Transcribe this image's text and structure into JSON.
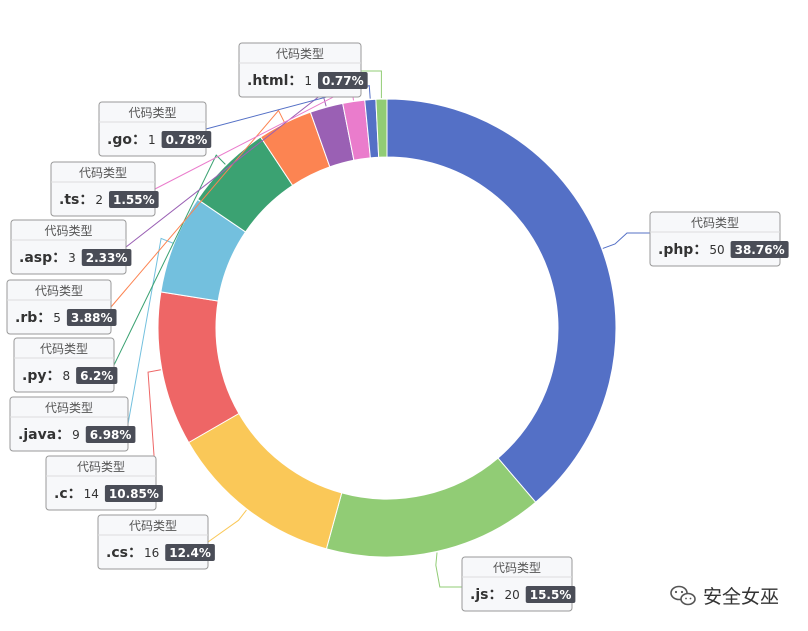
{
  "chart_data": {
    "type": "pie",
    "categories": [
      ".php",
      ".js",
      ".cs",
      ".c",
      ".java",
      ".py",
      ".rb",
      ".asp",
      ".ts",
      ".go",
      ".html"
    ],
    "values": [
      50,
      20,
      16,
      14,
      9,
      8,
      5,
      3,
      2,
      1,
      1
    ],
    "percents": [
      "38.76%",
      "15.5%",
      "12.4%",
      "10.85%",
      "6.98%",
      "6.2%",
      "3.88%",
      "2.33%",
      "1.55%",
      "0.78%",
      "0.77%"
    ],
    "colors": [
      "#5470c6",
      "#91cc75",
      "#fac858",
      "#ee6666",
      "#73c0de",
      "#3ba272",
      "#fc8452",
      "#9a60b4",
      "#ea7ccc",
      "#5470c6",
      "#91cc75"
    ],
    "label_title": "代码类型",
    "donut": true,
    "legend": "none"
  },
  "watermark": {
    "text": "安全女巫",
    "icon": "wechat-icon"
  }
}
